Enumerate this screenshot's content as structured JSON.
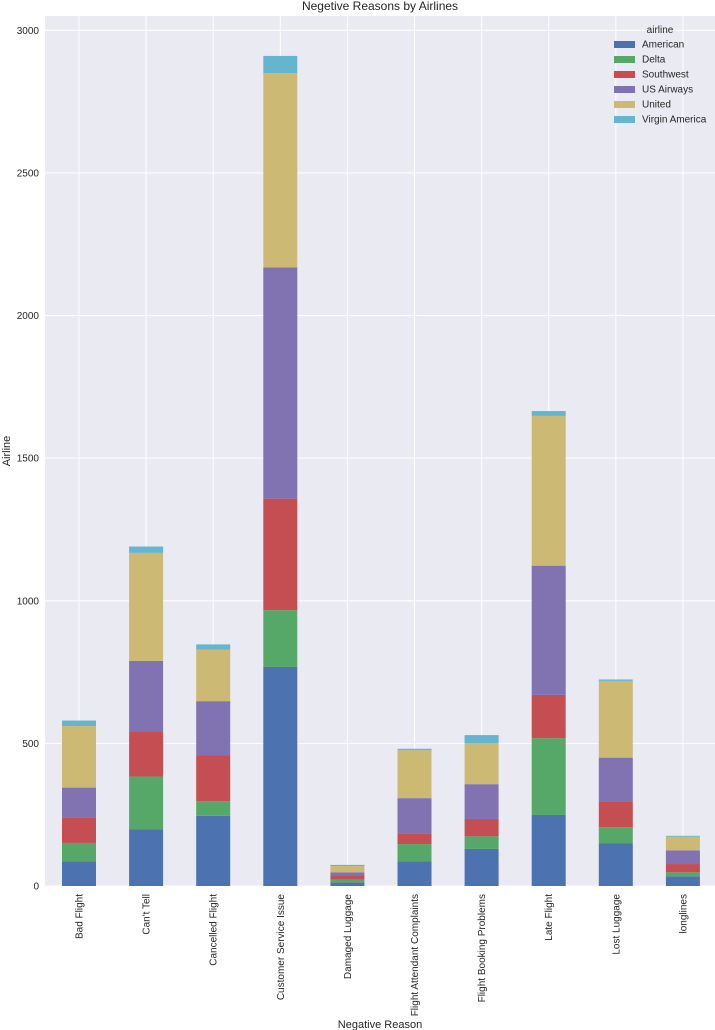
{
  "chart_data": {
    "type": "bar",
    "stacked": true,
    "title": "Negetive Reasons by Airlines",
    "xlabel": "Negative Reason",
    "ylabel": "Airline",
    "ylim": [
      0,
      3050
    ],
    "yticks": [
      0,
      500,
      1000,
      1500,
      2000,
      2500,
      3000
    ],
    "grid": true,
    "legend_title": "airline",
    "legend_position": "top-right",
    "categories": [
      "Bad Flight",
      "Can't Tell",
      "Cancelled Flight",
      "Customer Service Issue",
      "Damaged Luggage",
      "Flight Attendant Complaints",
      "Flight Booking Problems",
      "Late Flight",
      "Lost Luggage",
      "longlines"
    ],
    "series": [
      {
        "name": "American",
        "color": "#4c72b0",
        "values": [
          87,
          198,
          246,
          768,
          12,
          87,
          130,
          249,
          149,
          34
        ]
      },
      {
        "name": "Delta",
        "color": "#55a868",
        "values": [
          64,
          186,
          51,
          199,
          11,
          60,
          44,
          269,
          57,
          14
        ]
      },
      {
        "name": "Southwest",
        "color": "#c44e52",
        "values": [
          90,
          159,
          162,
          391,
          14,
          38,
          61,
          152,
          90,
          29
        ]
      },
      {
        "name": "US Airways",
        "color": "#8172b2",
        "values": [
          104,
          246,
          189,
          811,
          11,
          123,
          122,
          453,
          154,
          48
        ]
      },
      {
        "name": "United",
        "color": "#ccb974",
        "values": [
          216,
          379,
          181,
          681,
          22,
          168,
          144,
          525,
          269,
          48
        ]
      },
      {
        "name": "Virgin America",
        "color": "#64b5cd",
        "values": [
          19,
          22,
          18,
          60,
          4,
          5,
          28,
          17,
          5,
          3
        ]
      }
    ]
  }
}
